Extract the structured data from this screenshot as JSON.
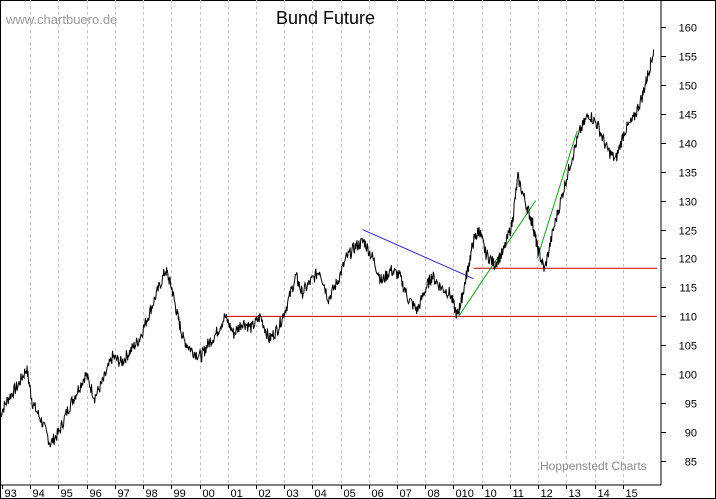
{
  "header": {
    "watermark": "www.chartbuero.de",
    "title": "Bund Future",
    "credit": "Hoppenstedt Charts"
  },
  "chart_data": {
    "type": "line",
    "title": "Bund Future",
    "xlabel": "",
    "ylabel": "",
    "x_ticks": [
      "93",
      "94",
      "95",
      "96",
      "97",
      "98",
      "99",
      "00",
      "01",
      "02",
      "03",
      "04",
      "05",
      "06",
      "07",
      "08",
      "010",
      "10",
      "11",
      "12",
      "13",
      "14",
      "15"
    ],
    "y_ticks": [
      85,
      90,
      95,
      100,
      105,
      110,
      115,
      120,
      125,
      130,
      135,
      140,
      145,
      150,
      155,
      160
    ],
    "ylim": [
      84,
      162
    ],
    "xlim": [
      1993.0,
      2015.2
    ],
    "grid": "vertical dashed",
    "series": [
      {
        "color": "#000000",
        "x": [
          1993.0,
          1993.3,
          1993.6,
          1993.9,
          1994.1,
          1994.4,
          1994.7,
          1995.0,
          1995.3,
          1995.6,
          1995.9,
          1996.2,
          1996.5,
          1996.8,
          1997.1,
          1997.4,
          1997.7,
          1998.0,
          1998.3,
          1998.6,
          1998.8,
          1999.0,
          1999.2,
          1999.5,
          1999.8,
          2000.0,
          2000.3,
          2000.6,
          2000.9,
          2001.2,
          2001.5,
          2001.8,
          2002.1,
          2002.4,
          2002.7,
          2003.0,
          2003.2,
          2003.5,
          2003.8,
          2004.1,
          2004.4,
          2004.7,
          2005.0,
          2005.3,
          2005.6,
          2005.9,
          2006.2,
          2006.5,
          2006.8,
          2007.1,
          2007.4,
          2007.6,
          2007.9,
          2008.2,
          2008.45,
          2008.6,
          2008.8,
          2009.0,
          2009.2,
          2009.4,
          2009.7,
          2010.0,
          2010.3,
          2010.5,
          2010.8,
          2011.0,
          2011.15,
          2011.4,
          2011.7,
          2012.0,
          2012.3,
          2012.6,
          2012.9,
          2013.2,
          2013.5,
          2013.8,
          2014.1,
          2014.4,
          2014.7,
          2014.9,
          2015.1
        ],
        "y": [
          93,
          96,
          98,
          101,
          95,
          92,
          88,
          90,
          94,
          97,
          100,
          96,
          99,
          103,
          102,
          104,
          106,
          110,
          114,
          118,
          115,
          110,
          106,
          104,
          103,
          105,
          107,
          110,
          107,
          109,
          108,
          110,
          106,
          108,
          112,
          117,
          114,
          116,
          118,
          113,
          116,
          120,
          122,
          123,
          120,
          116,
          118,
          117,
          113,
          111,
          115,
          117,
          115,
          114,
          110,
          113,
          118,
          123,
          125,
          121,
          119,
          121,
          126,
          134,
          129,
          126,
          122,
          118,
          125,
          131,
          137,
          142,
          145,
          143,
          139,
          137,
          142,
          144,
          148,
          152,
          156
        ]
      }
    ],
    "annotations": [
      {
        "type": "line",
        "color": "#2c2cc8",
        "x": [
          2005.25,
          2009.0
        ],
        "y": [
          125.0,
          116.5
        ]
      },
      {
        "type": "line",
        "color": "#cc0000",
        "x": [
          2000.6,
          2015.2
        ],
        "y": [
          110.0,
          110.0
        ]
      },
      {
        "type": "line",
        "color": "#cc0000",
        "x": [
          2009.0,
          2015.2
        ],
        "y": [
          118.3,
          118.3
        ]
      },
      {
        "type": "line",
        "color": "#1f9a1f",
        "x": [
          2008.5,
          2011.1
        ],
        "y": [
          110.0,
          130.0
        ]
      },
      {
        "type": "line",
        "color": "#1f9a1f",
        "x": [
          2011.15,
          2012.5
        ],
        "y": [
          120.0,
          142.0
        ]
      }
    ]
  }
}
